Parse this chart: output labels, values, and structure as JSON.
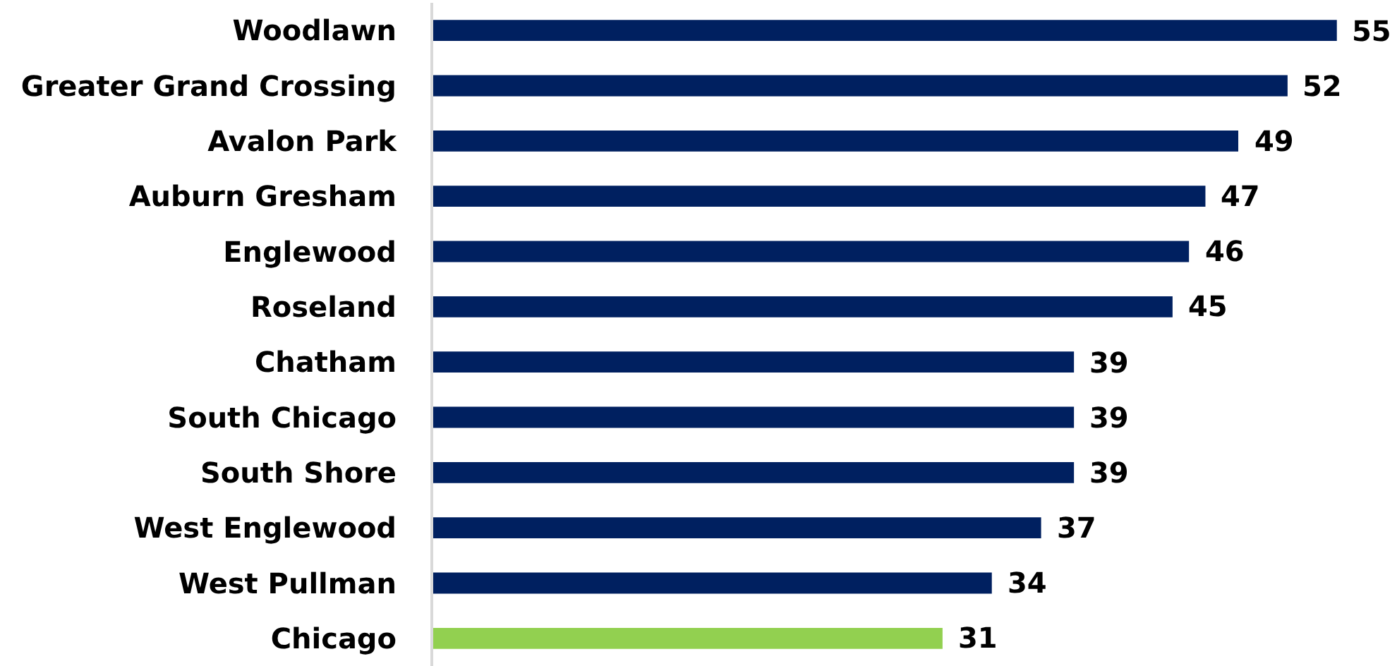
{
  "chart_data": {
    "type": "bar",
    "orientation": "horizontal",
    "categories": [
      "Woodlawn",
      "Greater Grand Crossing",
      "Avalon Park",
      "Auburn Gresham",
      "Englewood",
      "Roseland",
      "Chatham",
      "South Chicago",
      "South Shore",
      "West Englewood",
      "West Pullman",
      "Chicago"
    ],
    "values": [
      55,
      52,
      49,
      47,
      46,
      45,
      39,
      39,
      39,
      37,
      34,
      31
    ],
    "colors": [
      "#002060",
      "#002060",
      "#002060",
      "#002060",
      "#002060",
      "#002060",
      "#002060",
      "#002060",
      "#002060",
      "#002060",
      "#002060",
      "#92d050"
    ],
    "data_labels": true,
    "tick_labels": "y"
  }
}
